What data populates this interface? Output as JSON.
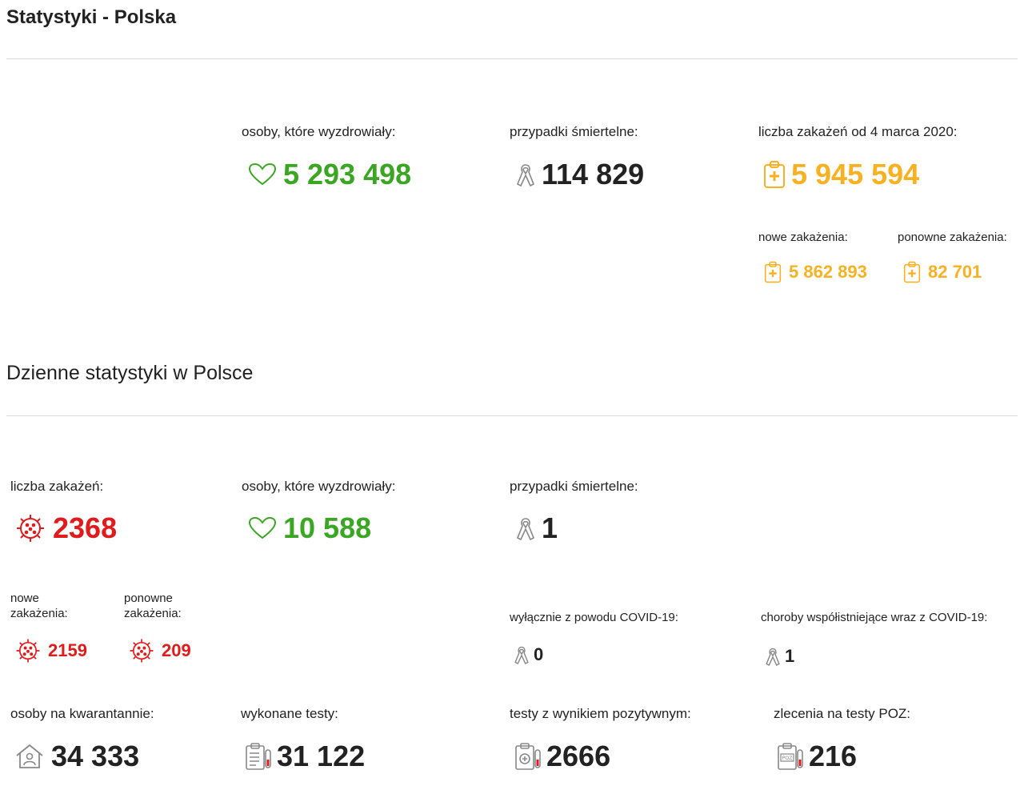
{
  "section1": {
    "title": "Statystyki - Polska",
    "recovered": {
      "label": "osoby, które wyzdrowiały:",
      "value": "5 293 498",
      "icon": "heart-icon"
    },
    "deaths": {
      "label": "przypadki śmiertelne:",
      "value": "114 829",
      "icon": "ribbon-icon"
    },
    "infections": {
      "label": "liczba zakażeń od 4 marca 2020:",
      "value": "5 945 594",
      "icon": "medical-clipboard-icon"
    },
    "new_infections": {
      "label": "nowe zakażenia:",
      "value": "5 862 893"
    },
    "re_infections": {
      "label": "ponowne zakażenia:",
      "value": "82 701"
    }
  },
  "section2": {
    "title": "Dzienne statystyki w Polsce",
    "infections": {
      "label": "liczba zakażeń:",
      "value": "2368",
      "icon": "virus-icon"
    },
    "new_infections": {
      "label_line1": "nowe",
      "label_line2": "zakażenia:",
      "value": "2159"
    },
    "re_infections": {
      "label_line1": "ponowne",
      "label_line2": "zakażenia:",
      "value": "209"
    },
    "recovered": {
      "label": "osoby, które wyzdrowiały:",
      "value": "10 588"
    },
    "deaths": {
      "label": "przypadki śmiertelne:",
      "value": "1"
    },
    "deaths_covid_only": {
      "label": "wyłącznie z powodu COVID-19:",
      "value": "0"
    },
    "deaths_comorbid": {
      "label": "choroby współistniejące wraz z COVID-19:",
      "value": "1"
    },
    "quarantine": {
      "label": "osoby na kwarantannie:",
      "value": "34 333",
      "icon": "house-person-icon"
    },
    "tests": {
      "label": "wykonane testy:",
      "value": "31 122",
      "icon": "test-report-icon"
    },
    "positive_tests": {
      "label": "testy z wynikiem pozytywnym:",
      "value": "2666",
      "icon": "positive-test-icon"
    },
    "poz_orders": {
      "label": "zlecenia na testy POZ:",
      "value": "216",
      "icon": "poz-test-icon"
    }
  },
  "colors": {
    "green": "#3aa624",
    "orange": "#f7b123",
    "red": "#e11b1b",
    "text": "#222222",
    "divider": "#d9d9d9"
  }
}
